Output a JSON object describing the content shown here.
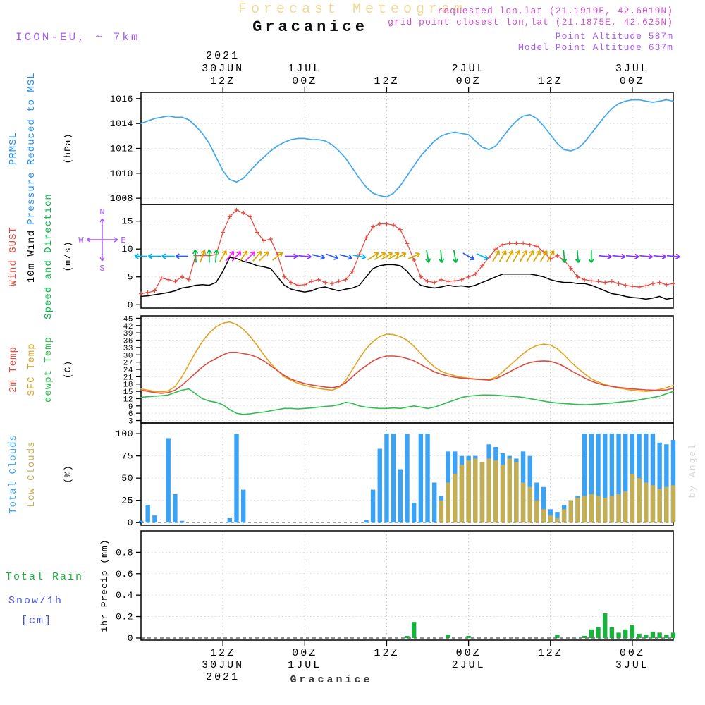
{
  "header": {
    "title": "Forecast Meteogram",
    "station": "Gracanice",
    "model": "ICON-EU, ~ 7km",
    "requested": "requested lon,lat (21.1919E, 42.6019N)",
    "grid_point": "grid point closest lon,lat (21.1875E, 42.625N)",
    "point_altitude": "Point Altitude 587m",
    "model_point_altitude": "Model Point Altitude 637m"
  },
  "footer": {
    "station": "Gracanice"
  },
  "watermark": "by Angel",
  "compass": {
    "n": "N",
    "e": "E",
    "s": "S",
    "w": "W"
  },
  "colors": {
    "pressure_line": "#3fa8f0",
    "pressure_label": "#1e90ff",
    "gust": "#e8453c",
    "wind10m": "#000000",
    "wind_dir_label": "#00bb44",
    "temp_2m": "#e04a3f",
    "temp_sfc": "#dfa520",
    "dewpoint": "#2fbf4f",
    "total_clouds": "#3aa3f5",
    "low_clouds": "#c3ae54",
    "rain": "#17b33c",
    "snow_label": "#4156e8",
    "purple_header": "#a95bf7",
    "pink_header": "#d24fd2",
    "title_tan": "#f0d898",
    "compass": "#a855f7",
    "watermark": "#d8d8d8",
    "arrows": {
      "cyan": "#00b0f0",
      "blue": "#2b5bee",
      "green": "#00bb44",
      "yellow": "#d9a800",
      "magenta": "#f02bf0",
      "purple": "#8833ff"
    }
  },
  "time_axis": {
    "ticks": [
      {
        "h": 12,
        "z": "12Z",
        "date": "30JUN",
        "year": "2021"
      },
      {
        "h": 24,
        "z": "00Z",
        "date": "1JUL"
      },
      {
        "h": 36,
        "z": "12Z"
      },
      {
        "h": 48,
        "z": "00Z",
        "date": "2JUL"
      },
      {
        "h": 60,
        "z": "12Z"
      },
      {
        "h": 72,
        "z": "00Z",
        "date": "3JUL"
      }
    ]
  },
  "panels": {
    "pressure": {
      "side_labels": [
        {
          "text": "PRMSL",
          "color_key": "pressure_label"
        },
        {
          "text": "Pressure Reduced to MSL",
          "color_key": "pressure_label"
        }
      ],
      "unit": "(hPa)",
      "yticks": [
        1016,
        1014,
        1012,
        1010,
        1008
      ],
      "ymin": 1007.5,
      "ymax": 1016.5
    },
    "wind": {
      "side_labels": [
        {
          "text": "Wind GUST",
          "color_key": "gust"
        },
        {
          "text": "10m Wind",
          "color_key": "wind10m"
        },
        {
          "text": "Speed and Direction",
          "color_key": "wind_dir_label"
        }
      ],
      "unit": "(m/s)",
      "yticks": [
        15,
        10,
        5,
        0
      ],
      "ymin": -0.6,
      "ymax": 18
    },
    "temp": {
      "side_labels": [
        {
          "text": "2m Temp",
          "color_key": "temp_2m"
        },
        {
          "text": "SFC Temp",
          "color_key": "temp_sfc"
        },
        {
          "text": "dewpt Temp",
          "color_key": "dewpoint"
        }
      ],
      "unit": "(C)",
      "yticks": [
        45,
        42,
        39,
        36,
        33,
        30,
        27,
        24,
        21,
        18,
        15,
        12,
        9,
        6,
        3
      ],
      "ymin": 2,
      "ymax": 46
    },
    "clouds": {
      "side_labels": [
        {
          "text": "Total Clouds",
          "color_key": "total_clouds"
        },
        {
          "text": "Low Clouds",
          "color_key": "low_clouds"
        }
      ],
      "unit": "(%)",
      "yticks": [
        100,
        75,
        50,
        25,
        0
      ],
      "ymin": -3,
      "ymax": 112
    },
    "precip": {
      "side_labels": [
        {
          "text": "Total  Rain",
          "color_key": "rain"
        },
        {
          "text": "Snow/1h",
          "color_key": "snow_label"
        },
        {
          "text": "[cm]",
          "color_key": "snow_label"
        }
      ],
      "unit": "1hr Precip  (mm)",
      "yticks": [
        0.8,
        0.6,
        0.4,
        0.2,
        0
      ],
      "ymin": -0.02,
      "ymax": 1.0
    }
  },
  "chart_data": {
    "type": "meteogram",
    "station": "Gracanice",
    "model": "ICON-EU",
    "time_start_label": "30JUN2021 00Z",
    "time_step_hours": 1,
    "n_points": 79,
    "series": {
      "pressure_hpa": [
        1014,
        1014.2,
        1014.4,
        1014.5,
        1014.6,
        1014.5,
        1014.5,
        1014.3,
        1013.8,
        1013.2,
        1012.4,
        1011.3,
        1010.2,
        1009.5,
        1009.3,
        1009.6,
        1010.2,
        1010.8,
        1011.3,
        1011.8,
        1012.2,
        1012.5,
        1012.7,
        1012.8,
        1012.8,
        1012.7,
        1012.7,
        1012.6,
        1012.3,
        1011.8,
        1011.2,
        1010.4,
        1009.6,
        1008.9,
        1008.4,
        1008.2,
        1008.1,
        1008.4,
        1009,
        1009.8,
        1010.6,
        1011.4,
        1012,
        1012.6,
        1013,
        1013.2,
        1013.3,
        1013.2,
        1013.1,
        1012.6,
        1012.1,
        1011.9,
        1012.2,
        1012.9,
        1013.6,
        1014.2,
        1014.6,
        1014.7,
        1014.4,
        1013.8,
        1013.1,
        1012.4,
        1011.9,
        1011.8,
        1012,
        1012.5,
        1013.2,
        1013.9,
        1014.6,
        1015.2,
        1015.6,
        1015.8,
        1015.9,
        1015.9,
        1015.8,
        1015.7,
        1015.8,
        1015.9,
        1015.8
      ],
      "wind_gust_ms": [
        2,
        2.2,
        2.5,
        4.8,
        4.5,
        4.2,
        5,
        4.5,
        8.8,
        8.8,
        8.8,
        9,
        13,
        15.8,
        17,
        16.5,
        15.8,
        13,
        11.5,
        11.8,
        9,
        5,
        4,
        3.5,
        3.6,
        4.2,
        4.5,
        4,
        3.8,
        4.2,
        4.5,
        6,
        9,
        12,
        14,
        14.5,
        14.5,
        14.3,
        13.5,
        11,
        8,
        5,
        4.2,
        4,
        4.5,
        4.2,
        4.3,
        4.5,
        5,
        5.5,
        7,
        8.5,
        10,
        10.8,
        11,
        11,
        11,
        10.8,
        10.5,
        9.5,
        8.2,
        8.8,
        8,
        6.5,
        5,
        4.5,
        4.3,
        4.2,
        4,
        4.2,
        3.8,
        3.5,
        3.3,
        3.2,
        3.4,
        3.8,
        4,
        3.6,
        3.8
      ],
      "wind_10m_ms": [
        1.5,
        1.6,
        1.8,
        2,
        2.2,
        2.5,
        3,
        3.2,
        3.5,
        3.6,
        3.5,
        4,
        6,
        8.5,
        8.3,
        7.8,
        7.5,
        7,
        6.8,
        6.5,
        5,
        3.5,
        2.8,
        2.5,
        2.3,
        2.5,
        3,
        3.2,
        2.8,
        2.5,
        2.8,
        3,
        3.5,
        5,
        6.5,
        7,
        7.2,
        7.2,
        7,
        6,
        4.5,
        3.5,
        3.2,
        3,
        3.2,
        3.5,
        3.3,
        3.4,
        3.2,
        3.5,
        4,
        4.5,
        5,
        5.5,
        5.5,
        5.5,
        5.5,
        5.5,
        5.3,
        5,
        4.5,
        4.2,
        4,
        4,
        3.8,
        3.8,
        3.5,
        3,
        2.5,
        2,
        1.8,
        1.5,
        1.3,
        1.2,
        1,
        1.2,
        1.5,
        1,
        1.2
      ],
      "temp_2m_c": [
        15.5,
        15,
        14.5,
        14.2,
        14.5,
        15.5,
        17.5,
        20,
        22.5,
        25,
        27,
        28.5,
        30,
        31,
        31,
        30.5,
        30,
        29,
        27.5,
        25.5,
        23.5,
        21.5,
        20,
        19,
        18.2,
        17.6,
        17.2,
        16.8,
        16.5,
        17,
        18.5,
        21,
        23.5,
        25.5,
        27.5,
        28.8,
        29.5,
        29.5,
        29.2,
        28.5,
        27.5,
        26,
        24.5,
        23,
        22,
        21.3,
        20.8,
        20.4,
        20.2,
        20,
        19.8,
        19.6,
        20.2,
        21.5,
        23,
        24.5,
        25.8,
        26.8,
        27.3,
        27.5,
        27.3,
        26.5,
        25.2,
        23.5,
        22,
        20.5,
        19.2,
        18.2,
        17.5,
        17,
        16.6,
        16.3,
        16,
        15.8,
        15.6,
        15.5,
        15.4,
        15.6,
        16.2
      ],
      "temp_sfc_c": [
        16,
        15.5,
        15,
        14.8,
        15.2,
        17,
        21,
        26,
        31,
        35.5,
        39,
        41.5,
        43,
        43.5,
        42.5,
        40.5,
        37.5,
        34,
        30,
        26.5,
        23.5,
        21,
        19.5,
        18.3,
        17.5,
        16.8,
        16.2,
        15.8,
        15.5,
        16.5,
        19.5,
        24,
        28.5,
        32.5,
        35.5,
        37.5,
        38.5,
        38.3,
        37.5,
        36,
        33.5,
        30.5,
        27.5,
        25,
        23.2,
        22.2,
        21.4,
        20.8,
        20.4,
        20.1,
        19.9,
        19.8,
        20.8,
        23,
        25.5,
        28,
        30.5,
        32.5,
        33.8,
        34.4,
        34,
        32.5,
        30,
        27,
        24.5,
        22.2,
        20.2,
        18.8,
        17.8,
        17,
        16.4,
        15.9,
        15.5,
        15.2,
        15,
        15.2,
        15.8,
        16.5,
        17.5
      ],
      "dewpoint_c": [
        12.5,
        12.8,
        13,
        13.2,
        13.5,
        14.5,
        15.5,
        16,
        14,
        12,
        11,
        10.5,
        9.5,
        7.5,
        6,
        5.5,
        5.8,
        6.2,
        6.5,
        7,
        7.5,
        8,
        8,
        7.8,
        8,
        8.2,
        8.5,
        8.8,
        9,
        9.5,
        10.5,
        10,
        9,
        8.5,
        8.2,
        8,
        8,
        8.2,
        8,
        8.5,
        9,
        8.5,
        8,
        8.5,
        9.5,
        10.5,
        11.5,
        12.5,
        13,
        13.3,
        13.5,
        13.5,
        13.4,
        13.2,
        13,
        12.8,
        12.5,
        12,
        11.5,
        11,
        10.5,
        10.2,
        10,
        9.8,
        9.6,
        9.5,
        9.6,
        9.8,
        10,
        10.2,
        10.5,
        10.8,
        11,
        11.5,
        12,
        12.5,
        13,
        14,
        15
      ],
      "total_clouds_pct": [
        2,
        20,
        8,
        0,
        95,
        32,
        2,
        0,
        0,
        0,
        0,
        0,
        0,
        5,
        100,
        37,
        0,
        0,
        0,
        0,
        0,
        0,
        0,
        0,
        0,
        0,
        0,
        0,
        0,
        0,
        0,
        0,
        0,
        3,
        37,
        83,
        100,
        100,
        60,
        100,
        22,
        100,
        100,
        45,
        30,
        80,
        80,
        75,
        75,
        75,
        68,
        88,
        85,
        78,
        75,
        72,
        80,
        75,
        45,
        40,
        15,
        12,
        20,
        25,
        30,
        100,
        100,
        100,
        100,
        100,
        100,
        100,
        100,
        100,
        100,
        100,
        90,
        88,
        93
      ],
      "low_clouds_pct": [
        0,
        0,
        0,
        0,
        0,
        0,
        0,
        0,
        0,
        0,
        0,
        0,
        0,
        0,
        0,
        0,
        0,
        0,
        0,
        0,
        0,
        0,
        0,
        0,
        0,
        0,
        0,
        0,
        0,
        0,
        0,
        0,
        0,
        0,
        0,
        0,
        0,
        0,
        0,
        0,
        0,
        0,
        0,
        0,
        25,
        45,
        55,
        65,
        70,
        72,
        68,
        72,
        70,
        65,
        72,
        68,
        45,
        40,
        25,
        15,
        8,
        5,
        15,
        25,
        28,
        30,
        32,
        30,
        28,
        30,
        32,
        35,
        55,
        50,
        45,
        42,
        38,
        40,
        42
      ],
      "rain_1h_mm": [
        0,
        0,
        0,
        0,
        0,
        0,
        0,
        0,
        0,
        0,
        0,
        0,
        0,
        0,
        0,
        0,
        0,
        0,
        0,
        0,
        0,
        0,
        0,
        0,
        0,
        0,
        0,
        0,
        0,
        0,
        0,
        0,
        0,
        0,
        0,
        0,
        0,
        0,
        0,
        0.02,
        0.15,
        0,
        0,
        0,
        0,
        0.03,
        0,
        0,
        0.02,
        0,
        0,
        0,
        0,
        0,
        0,
        0,
        0,
        0,
        0,
        0,
        0,
        0.03,
        0,
        0,
        0,
        0.02,
        0.08,
        0.1,
        0.23,
        0.1,
        0.05,
        0.08,
        0.12,
        0.04,
        0.03,
        0.06,
        0.05,
        0.03,
        0.05
      ],
      "snow_1h_cm_constant": 0
    },
    "wind_arrows": [
      [
        0,
        "cyan",
        180
      ],
      [
        2,
        "cyan",
        180
      ],
      [
        4,
        "cyan",
        180
      ],
      [
        6,
        "blue",
        180
      ],
      [
        8,
        "green",
        95
      ],
      [
        9,
        "yellow",
        70
      ],
      [
        10,
        "green",
        90
      ],
      [
        11,
        "green",
        85
      ],
      [
        12,
        "yellow",
        60
      ],
      [
        13,
        "magenta",
        50
      ],
      [
        14,
        "magenta",
        48
      ],
      [
        15,
        "yellow",
        55
      ],
      [
        16,
        "magenta",
        45
      ],
      [
        17,
        "yellow",
        50
      ],
      [
        18,
        "yellow",
        45
      ],
      [
        20,
        "yellow",
        40
      ],
      [
        22,
        "purple",
        0
      ],
      [
        24,
        "purple",
        -5
      ],
      [
        26,
        "blue",
        -15
      ],
      [
        28,
        "blue",
        -20
      ],
      [
        30,
        "blue",
        -15
      ],
      [
        32,
        "cyan",
        -10
      ],
      [
        34,
        "yellow",
        35
      ],
      [
        35,
        "yellow",
        32
      ],
      [
        36,
        "yellow",
        30
      ],
      [
        37,
        "yellow",
        30
      ],
      [
        38,
        "yellow",
        28
      ],
      [
        40,
        "yellow",
        25
      ],
      [
        42,
        "green",
        -80
      ],
      [
        44,
        "green",
        -85
      ],
      [
        46,
        "green",
        -80
      ],
      [
        48,
        "blue",
        -30
      ],
      [
        50,
        "cyan",
        -25
      ],
      [
        52,
        "yellow",
        60
      ],
      [
        53,
        "yellow",
        60
      ],
      [
        54,
        "yellow",
        60
      ],
      [
        55,
        "yellow",
        60
      ],
      [
        56,
        "yellow",
        60
      ],
      [
        57,
        "yellow",
        60
      ],
      [
        58,
        "yellow",
        60
      ],
      [
        59,
        "yellow",
        60
      ],
      [
        60,
        "yellow",
        60
      ],
      [
        62,
        "green",
        -85
      ],
      [
        64,
        "green",
        -85
      ],
      [
        66,
        "green",
        -90
      ],
      [
        68,
        "purple",
        -5
      ],
      [
        70,
        "purple",
        -5
      ],
      [
        72,
        "purple",
        -5
      ],
      [
        74,
        "purple",
        -5
      ],
      [
        76,
        "purple",
        -5
      ],
      [
        78,
        "purple",
        -5
      ]
    ]
  }
}
